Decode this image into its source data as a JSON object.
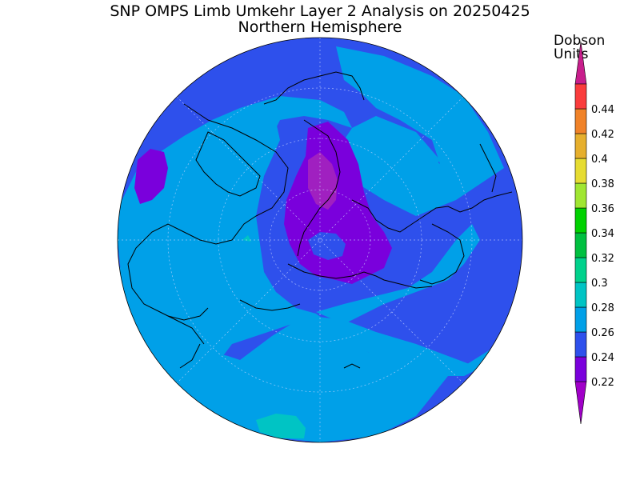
{
  "title": {
    "line1": "SNP OMPS Limb Umkehr Layer 2 Analysis on 20250425",
    "line2": "Northern Hemisphere"
  },
  "colorbar": {
    "units_line1": "Dobson",
    "units_line2": "Units",
    "levels": [
      {
        "label": "0.22",
        "color": "#7a00dc"
      },
      {
        "label": "0.24",
        "color": "#2e50ec"
      },
      {
        "label": "0.26",
        "color": "#00a0e8"
      },
      {
        "label": "0.28",
        "color": "#00c4c4"
      },
      {
        "label": "0.3",
        "color": "#00d28c"
      },
      {
        "label": "0.32",
        "color": "#00c040"
      },
      {
        "label": "0.34",
        "color": "#00d200"
      },
      {
        "label": "0.36",
        "color": "#a0e632"
      },
      {
        "label": "0.38",
        "color": "#e6dc32"
      },
      {
        "label": "0.4",
        "color": "#e6af2d"
      },
      {
        "label": "0.42",
        "color": "#f08228"
      },
      {
        "label": "0.44",
        "color": "#fa3c3c"
      }
    ],
    "below_color": "#a000c8",
    "above_color": "#c81e8c"
  },
  "map": {
    "projection": "north-polar-stereographic",
    "background_color": "#2e50ec",
    "field_colors": {
      "low": "#7a00dc",
      "mid": "#2e50ec",
      "high": "#00a0e8",
      "peak": "#00c4c4",
      "minimum": "#a020c0"
    }
  }
}
